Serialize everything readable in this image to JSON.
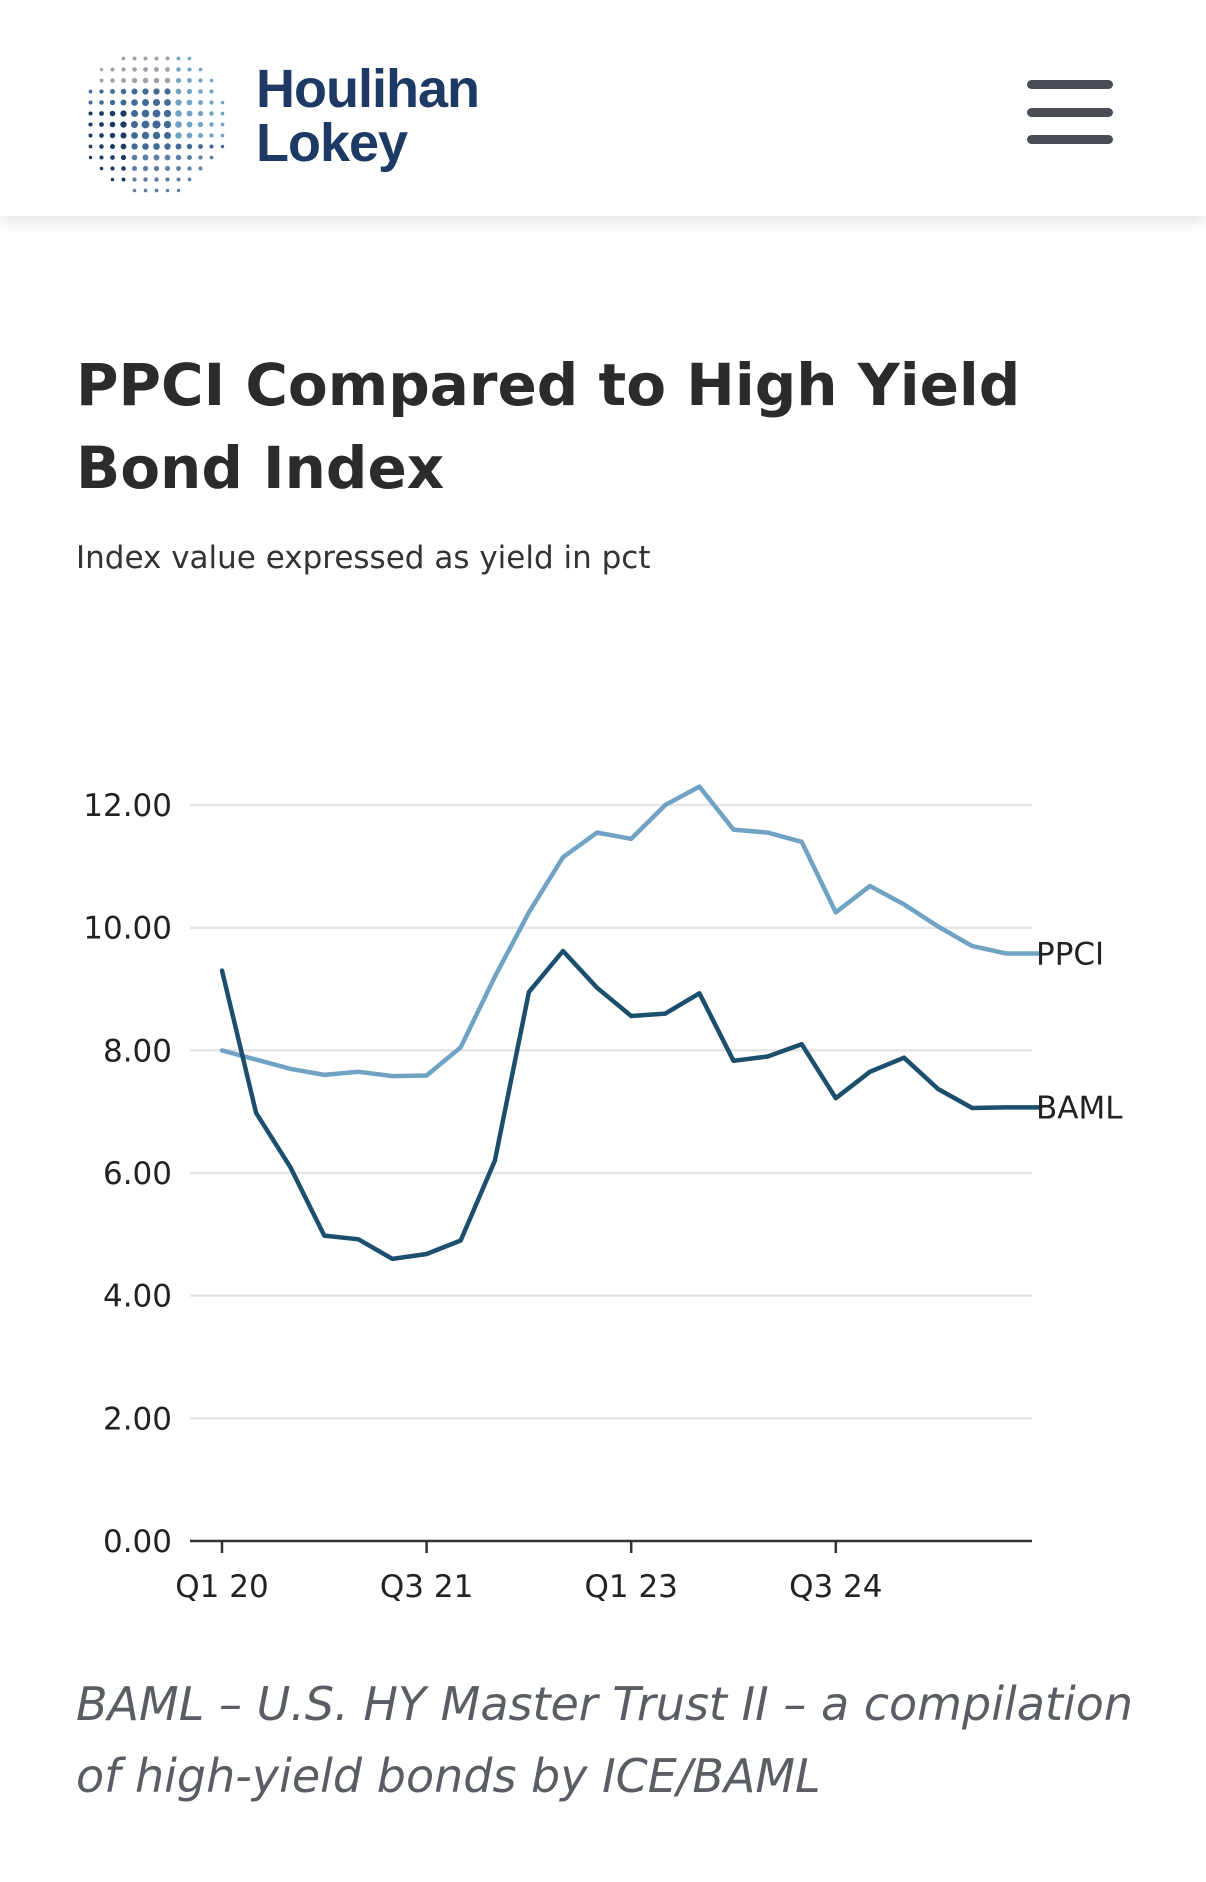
{
  "header": {
    "brand_line1": "Houlihan",
    "brand_line2": "Lokey",
    "brand_color": "#1c3a63"
  },
  "title": "PPCI Compared to High Yield Bond Index",
  "subtitle": "Index value expressed as yield in pct",
  "caption": "BAML – U.S. HY Master Trust II – a compilation of high-yield bonds by ICE/BAML",
  "chart_data": {
    "type": "line",
    "title": "PPCI Compared to High Yield Bond Index",
    "ylabel": "Index value expressed as yield in pct",
    "xlabel": "",
    "ylim": [
      0,
      12
    ],
    "y_ticks": [
      "0.00",
      "2.00",
      "4.00",
      "6.00",
      "8.00",
      "10.00",
      "12.00"
    ],
    "x": [
      "Q1 20",
      "Q2 20",
      "Q3 20",
      "Q4 20",
      "Q1 21",
      "Q2 21",
      "Q3 21",
      "Q4 21",
      "Q1 22",
      "Q2 22",
      "Q3 22",
      "Q4 22",
      "Q1 23",
      "Q2 23",
      "Q3 23",
      "Q4 23",
      "Q1 24",
      "Q2 24",
      "Q3 24",
      "Q4 24",
      "Q1 25",
      "Q2 25",
      "Q3 25",
      "Q4 25",
      "Q1 26"
    ],
    "x_tick_labels": [
      "Q1 20",
      "Q3 21",
      "Q1 23",
      "Q3 24"
    ],
    "grid": true,
    "series": [
      {
        "name": "PPCI",
        "color": "#6fa2c3",
        "values": [
          8.0,
          7.85,
          7.7,
          7.6,
          7.65,
          7.58,
          7.59,
          8.05,
          9.2,
          10.25,
          11.15,
          11.55,
          11.45,
          12.0,
          12.3,
          11.6,
          11.55,
          11.4,
          10.25,
          10.68,
          10.38,
          10.02,
          9.7,
          9.58,
          9.58
        ]
      },
      {
        "name": "BAML",
        "color": "#1c4f6d",
        "values": [
          9.3,
          6.98,
          6.1,
          4.98,
          4.92,
          4.6,
          4.68,
          4.9,
          6.2,
          8.95,
          9.62,
          9.02,
          8.56,
          8.6,
          8.93,
          7.83,
          7.9,
          8.1,
          7.22,
          7.65,
          7.88,
          7.37,
          7.06,
          7.07,
          7.07
        ]
      }
    ],
    "legend": "inline-right",
    "axis_color": "#333333",
    "grid_color": "#e6e6e6"
  }
}
